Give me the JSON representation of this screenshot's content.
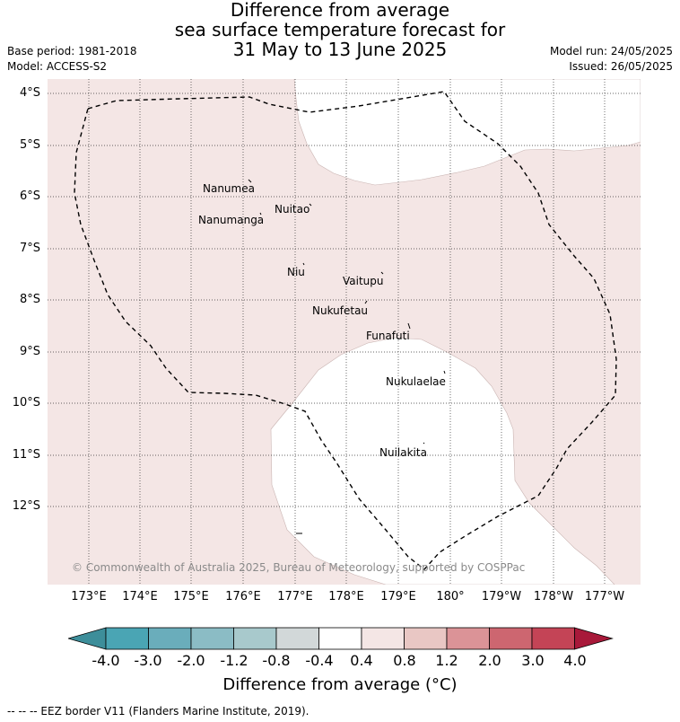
{
  "title": {
    "line1": "Difference from average",
    "line2": "sea surface temperature forecast for",
    "line3": "31 May to 13 June 2025"
  },
  "meta": {
    "base_period": "Base period: 1981-2018",
    "model": "Model: ACCESS-S2",
    "model_run": "Model run: 24/05/2025",
    "issued": "Issued: 26/05/2025"
  },
  "map": {
    "background_color": "#f4e6e5",
    "neutral_color": "#ffffff",
    "lat_labels": [
      "4°S",
      "5°S",
      "6°S",
      "7°S",
      "8°S",
      "9°S",
      "10°S",
      "11°S",
      "12°S"
    ],
    "lon_labels": [
      "173°E",
      "174°E",
      "175°E",
      "176°E",
      "177°E",
      "178°E",
      "179°E",
      "180°",
      "179°W",
      "178°W",
      "177°W"
    ],
    "islands": [
      "Nanumea",
      "Nuitao",
      "Nanumanga",
      "Niu",
      "Vaitupu",
      "Nukufetau",
      "Funafuti",
      "Nukulaelae",
      "Nuilakita"
    ],
    "copyright": "© Commonwealth of Australia 2025, Bureau of Meteorology, supported by COSPPac"
  },
  "colorbar": {
    "label": "Difference from average (°C)",
    "ticks": [
      "-4.0",
      "-3.0",
      "-2.0",
      "-1.2",
      "-0.8",
      "-0.4",
      "0.4",
      "0.8",
      "1.2",
      "2.0",
      "3.0",
      "4.0"
    ],
    "colors": [
      "#3d8e9a",
      "#4aa5b4",
      "#6aadbb",
      "#8bbcc5",
      "#a8c9cc",
      "#d2d8d9",
      "#ffffff",
      "#f4e6e5",
      "#e9c7c4",
      "#db9397",
      "#cd6670",
      "#c44456",
      "#a8193a"
    ]
  },
  "footer": "--  --  -- EEZ border V11 (Flanders Marine Institute, 2019)."
}
